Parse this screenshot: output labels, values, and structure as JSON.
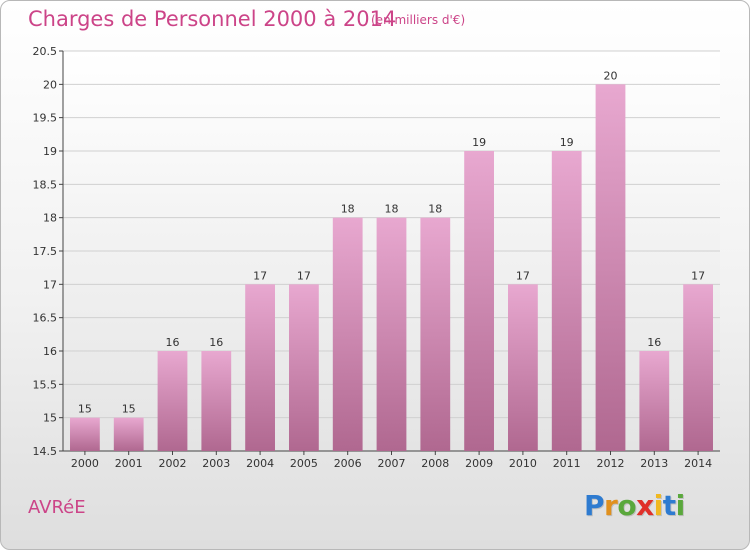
{
  "title": "Charges de Personnel 2000 à 2014",
  "subtitle": "(en milliers d'€)",
  "town": "AVRéE",
  "logo": {
    "letters": [
      "P",
      "r",
      "o",
      "x",
      "i",
      "t",
      "i"
    ],
    "colors": [
      "#2e7bd0",
      "#e0901e",
      "#5aa83c",
      "#e0302a",
      "#f0b820",
      "#2e7bd0",
      "#5aa83c"
    ]
  },
  "colors": {
    "accent": "#cc4488",
    "bar_top": "#e8a8d0",
    "bar_bottom": "#b06890",
    "grid": "#d0d0d0"
  },
  "chart_data": {
    "type": "bar",
    "title": "Charges de Personnel 2000 à 2014",
    "subtitle": "(en milliers d'€)",
    "categories": [
      "2000",
      "2001",
      "2002",
      "2003",
      "2004",
      "2005",
      "2006",
      "2007",
      "2008",
      "2009",
      "2010",
      "2011",
      "2012",
      "2013",
      "2014"
    ],
    "values": [
      15,
      15,
      16,
      16,
      17,
      17,
      18,
      18,
      18,
      19,
      17,
      19,
      20,
      16,
      17
    ],
    "ylim": [
      14.5,
      20.5
    ],
    "yticks": [
      14.5,
      15,
      15.5,
      16,
      16.5,
      17,
      17.5,
      18,
      18.5,
      19,
      19.5,
      20,
      20.5
    ],
    "grid": true
  }
}
